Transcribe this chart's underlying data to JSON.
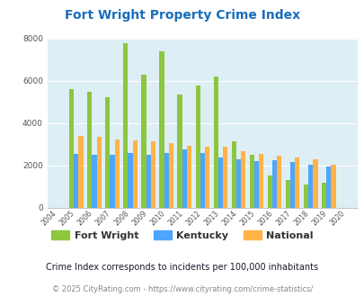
{
  "title": "Fort Wright Property Crime Index",
  "years": [
    2004,
    2005,
    2006,
    2007,
    2008,
    2009,
    2010,
    2011,
    2012,
    2013,
    2014,
    2015,
    2016,
    2017,
    2018,
    2019,
    2020
  ],
  "fort_wright": [
    0,
    5600,
    5500,
    5250,
    7800,
    6300,
    7400,
    5350,
    5800,
    6200,
    3150,
    2500,
    1550,
    1300,
    1100,
    1200,
    0
  ],
  "kentucky": [
    0,
    2550,
    2500,
    2500,
    2600,
    2500,
    2600,
    2750,
    2600,
    2400,
    2300,
    2200,
    2250,
    2150,
    2050,
    1950,
    0
  ],
  "national": [
    0,
    3400,
    3350,
    3250,
    3200,
    3150,
    3050,
    2950,
    2900,
    2900,
    2700,
    2550,
    2450,
    2400,
    2300,
    2050,
    0
  ],
  "color_fw": "#8dc63f",
  "color_ky": "#4da6ff",
  "color_nat": "#ffb347",
  "bg_color": "#ddeef5",
  "ylabel_max": 8000,
  "yticks": [
    0,
    2000,
    4000,
    6000,
    8000
  ],
  "subtitle": "Crime Index corresponds to incidents per 100,000 inhabitants",
  "footer": "© 2025 CityRating.com - https://www.cityrating.com/crime-statistics/",
  "title_color": "#1a6ebd",
  "subtitle_color": "#1a1a2e",
  "footer_color": "#888888",
  "url_color": "#4488cc"
}
